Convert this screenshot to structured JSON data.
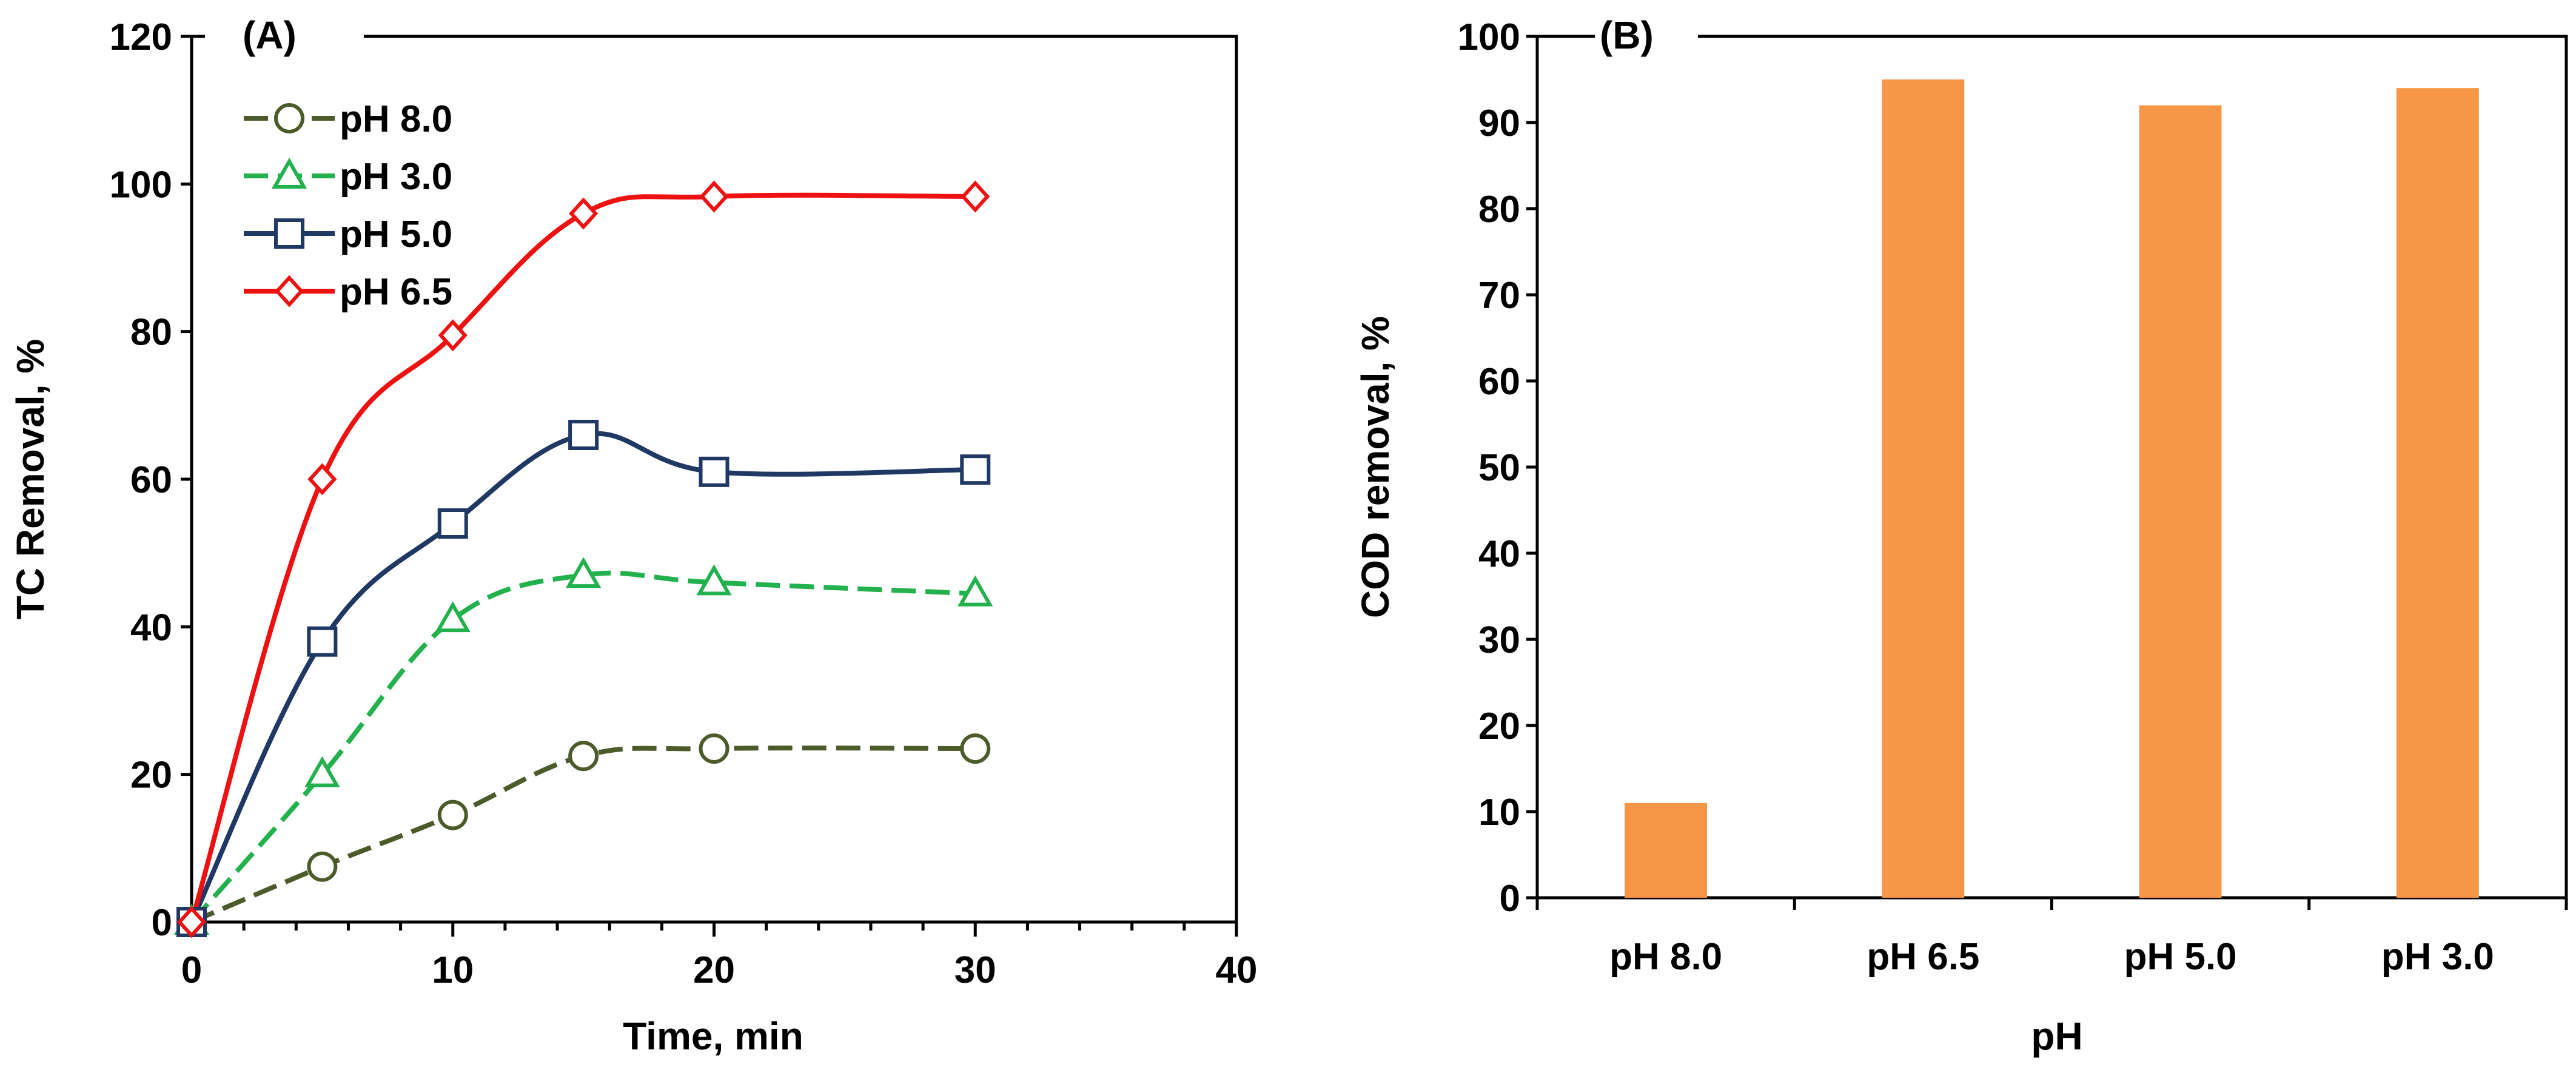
{
  "chart_data": [
    {
      "type": "line",
      "panel_label": "(A)",
      "xlabel": "Time, min",
      "ylabel": "TC Removal, %",
      "xlim": [
        0,
        40
      ],
      "ylim": [
        0,
        120
      ],
      "x_ticks": [
        "0",
        "10",
        "20",
        "30",
        "40"
      ],
      "y_ticks": [
        "0",
        "20",
        "40",
        "60",
        "80",
        "100",
        "120"
      ],
      "x": [
        0,
        5,
        10,
        15,
        20,
        30
      ],
      "legend_position": "top-left",
      "series": [
        {
          "name": "pH 8.0",
          "values": [
            0,
            7.5,
            14.5,
            22.5,
            23.5,
            23.5
          ],
          "color": "#4d5a2a",
          "marker": "circle",
          "dashed": true
        },
        {
          "name": "pH 3.0",
          "values": [
            0,
            20,
            41,
            47,
            46,
            44.5
          ],
          "color": "#22b14c",
          "marker": "triangle",
          "dashed": true
        },
        {
          "name": "pH 5.0",
          "values": [
            0,
            38,
            54,
            66,
            61,
            61.3
          ],
          "color": "#1f3864",
          "marker": "square",
          "dashed": false
        },
        {
          "name": "pH 6.5",
          "values": [
            0,
            60,
            79.5,
            96,
            98.3,
            98.3
          ],
          "color": "#ee1111",
          "marker": "diamond",
          "dashed": false
        }
      ]
    },
    {
      "type": "bar",
      "panel_label": "(B)",
      "xlabel": "pH",
      "ylabel": "COD removal, %",
      "ylim": [
        0,
        100
      ],
      "y_ticks": [
        "0",
        "10",
        "20",
        "30",
        "40",
        "50",
        "60",
        "70",
        "80",
        "90",
        "100"
      ],
      "categories": [
        "pH 8.0",
        "pH 6.5",
        "pH 5.0",
        "pH 3.0"
      ],
      "values": [
        11,
        95,
        92,
        94
      ],
      "bar_color": "#f79646"
    }
  ]
}
